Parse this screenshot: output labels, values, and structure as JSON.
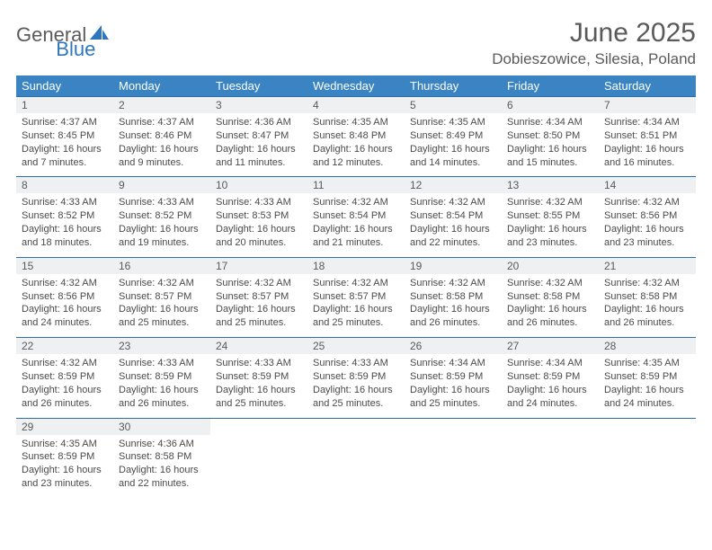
{
  "logo": {
    "general": "General",
    "blue": "Blue"
  },
  "title": {
    "month": "June 2025",
    "location": "Dobieszowice, Silesia, Poland"
  },
  "colors": {
    "header_bg": "#3b84c4",
    "daynum_bg": "#eef0f1",
    "rule": "#2f6fa8",
    "logo_blue": "#2f76bd"
  },
  "weekdays": [
    "Sunday",
    "Monday",
    "Tuesday",
    "Wednesday",
    "Thursday",
    "Friday",
    "Saturday"
  ],
  "weeks": [
    {
      "nums": [
        "1",
        "2",
        "3",
        "4",
        "5",
        "6",
        "7"
      ],
      "cells": [
        {
          "sunrise": "Sunrise: 4:37 AM",
          "sunset": "Sunset: 8:45 PM",
          "day1": "Daylight: 16 hours",
          "day2": "and 7 minutes."
        },
        {
          "sunrise": "Sunrise: 4:37 AM",
          "sunset": "Sunset: 8:46 PM",
          "day1": "Daylight: 16 hours",
          "day2": "and 9 minutes."
        },
        {
          "sunrise": "Sunrise: 4:36 AM",
          "sunset": "Sunset: 8:47 PM",
          "day1": "Daylight: 16 hours",
          "day2": "and 11 minutes."
        },
        {
          "sunrise": "Sunrise: 4:35 AM",
          "sunset": "Sunset: 8:48 PM",
          "day1": "Daylight: 16 hours",
          "day2": "and 12 minutes."
        },
        {
          "sunrise": "Sunrise: 4:35 AM",
          "sunset": "Sunset: 8:49 PM",
          "day1": "Daylight: 16 hours",
          "day2": "and 14 minutes."
        },
        {
          "sunrise": "Sunrise: 4:34 AM",
          "sunset": "Sunset: 8:50 PM",
          "day1": "Daylight: 16 hours",
          "day2": "and 15 minutes."
        },
        {
          "sunrise": "Sunrise: 4:34 AM",
          "sunset": "Sunset: 8:51 PM",
          "day1": "Daylight: 16 hours",
          "day2": "and 16 minutes."
        }
      ]
    },
    {
      "nums": [
        "8",
        "9",
        "10",
        "11",
        "12",
        "13",
        "14"
      ],
      "cells": [
        {
          "sunrise": "Sunrise: 4:33 AM",
          "sunset": "Sunset: 8:52 PM",
          "day1": "Daylight: 16 hours",
          "day2": "and 18 minutes."
        },
        {
          "sunrise": "Sunrise: 4:33 AM",
          "sunset": "Sunset: 8:52 PM",
          "day1": "Daylight: 16 hours",
          "day2": "and 19 minutes."
        },
        {
          "sunrise": "Sunrise: 4:33 AM",
          "sunset": "Sunset: 8:53 PM",
          "day1": "Daylight: 16 hours",
          "day2": "and 20 minutes."
        },
        {
          "sunrise": "Sunrise: 4:32 AM",
          "sunset": "Sunset: 8:54 PM",
          "day1": "Daylight: 16 hours",
          "day2": "and 21 minutes."
        },
        {
          "sunrise": "Sunrise: 4:32 AM",
          "sunset": "Sunset: 8:54 PM",
          "day1": "Daylight: 16 hours",
          "day2": "and 22 minutes."
        },
        {
          "sunrise": "Sunrise: 4:32 AM",
          "sunset": "Sunset: 8:55 PM",
          "day1": "Daylight: 16 hours",
          "day2": "and 23 minutes."
        },
        {
          "sunrise": "Sunrise: 4:32 AM",
          "sunset": "Sunset: 8:56 PM",
          "day1": "Daylight: 16 hours",
          "day2": "and 23 minutes."
        }
      ]
    },
    {
      "nums": [
        "15",
        "16",
        "17",
        "18",
        "19",
        "20",
        "21"
      ],
      "cells": [
        {
          "sunrise": "Sunrise: 4:32 AM",
          "sunset": "Sunset: 8:56 PM",
          "day1": "Daylight: 16 hours",
          "day2": "and 24 minutes."
        },
        {
          "sunrise": "Sunrise: 4:32 AM",
          "sunset": "Sunset: 8:57 PM",
          "day1": "Daylight: 16 hours",
          "day2": "and 25 minutes."
        },
        {
          "sunrise": "Sunrise: 4:32 AM",
          "sunset": "Sunset: 8:57 PM",
          "day1": "Daylight: 16 hours",
          "day2": "and 25 minutes."
        },
        {
          "sunrise": "Sunrise: 4:32 AM",
          "sunset": "Sunset: 8:57 PM",
          "day1": "Daylight: 16 hours",
          "day2": "and 25 minutes."
        },
        {
          "sunrise": "Sunrise: 4:32 AM",
          "sunset": "Sunset: 8:58 PM",
          "day1": "Daylight: 16 hours",
          "day2": "and 26 minutes."
        },
        {
          "sunrise": "Sunrise: 4:32 AM",
          "sunset": "Sunset: 8:58 PM",
          "day1": "Daylight: 16 hours",
          "day2": "and 26 minutes."
        },
        {
          "sunrise": "Sunrise: 4:32 AM",
          "sunset": "Sunset: 8:58 PM",
          "day1": "Daylight: 16 hours",
          "day2": "and 26 minutes."
        }
      ]
    },
    {
      "nums": [
        "22",
        "23",
        "24",
        "25",
        "26",
        "27",
        "28"
      ],
      "cells": [
        {
          "sunrise": "Sunrise: 4:32 AM",
          "sunset": "Sunset: 8:59 PM",
          "day1": "Daylight: 16 hours",
          "day2": "and 26 minutes."
        },
        {
          "sunrise": "Sunrise: 4:33 AM",
          "sunset": "Sunset: 8:59 PM",
          "day1": "Daylight: 16 hours",
          "day2": "and 26 minutes."
        },
        {
          "sunrise": "Sunrise: 4:33 AM",
          "sunset": "Sunset: 8:59 PM",
          "day1": "Daylight: 16 hours",
          "day2": "and 25 minutes."
        },
        {
          "sunrise": "Sunrise: 4:33 AM",
          "sunset": "Sunset: 8:59 PM",
          "day1": "Daylight: 16 hours",
          "day2": "and 25 minutes."
        },
        {
          "sunrise": "Sunrise: 4:34 AM",
          "sunset": "Sunset: 8:59 PM",
          "day1": "Daylight: 16 hours",
          "day2": "and 25 minutes."
        },
        {
          "sunrise": "Sunrise: 4:34 AM",
          "sunset": "Sunset: 8:59 PM",
          "day1": "Daylight: 16 hours",
          "day2": "and 24 minutes."
        },
        {
          "sunrise": "Sunrise: 4:35 AM",
          "sunset": "Sunset: 8:59 PM",
          "day1": "Daylight: 16 hours",
          "day2": "and 24 minutes."
        }
      ]
    },
    {
      "nums": [
        "29",
        "30",
        "",
        "",
        "",
        "",
        ""
      ],
      "cells": [
        {
          "sunrise": "Sunrise: 4:35 AM",
          "sunset": "Sunset: 8:59 PM",
          "day1": "Daylight: 16 hours",
          "day2": "and 23 minutes."
        },
        {
          "sunrise": "Sunrise: 4:36 AM",
          "sunset": "Sunset: 8:58 PM",
          "day1": "Daylight: 16 hours",
          "day2": "and 22 minutes."
        },
        null,
        null,
        null,
        null,
        null
      ]
    }
  ]
}
